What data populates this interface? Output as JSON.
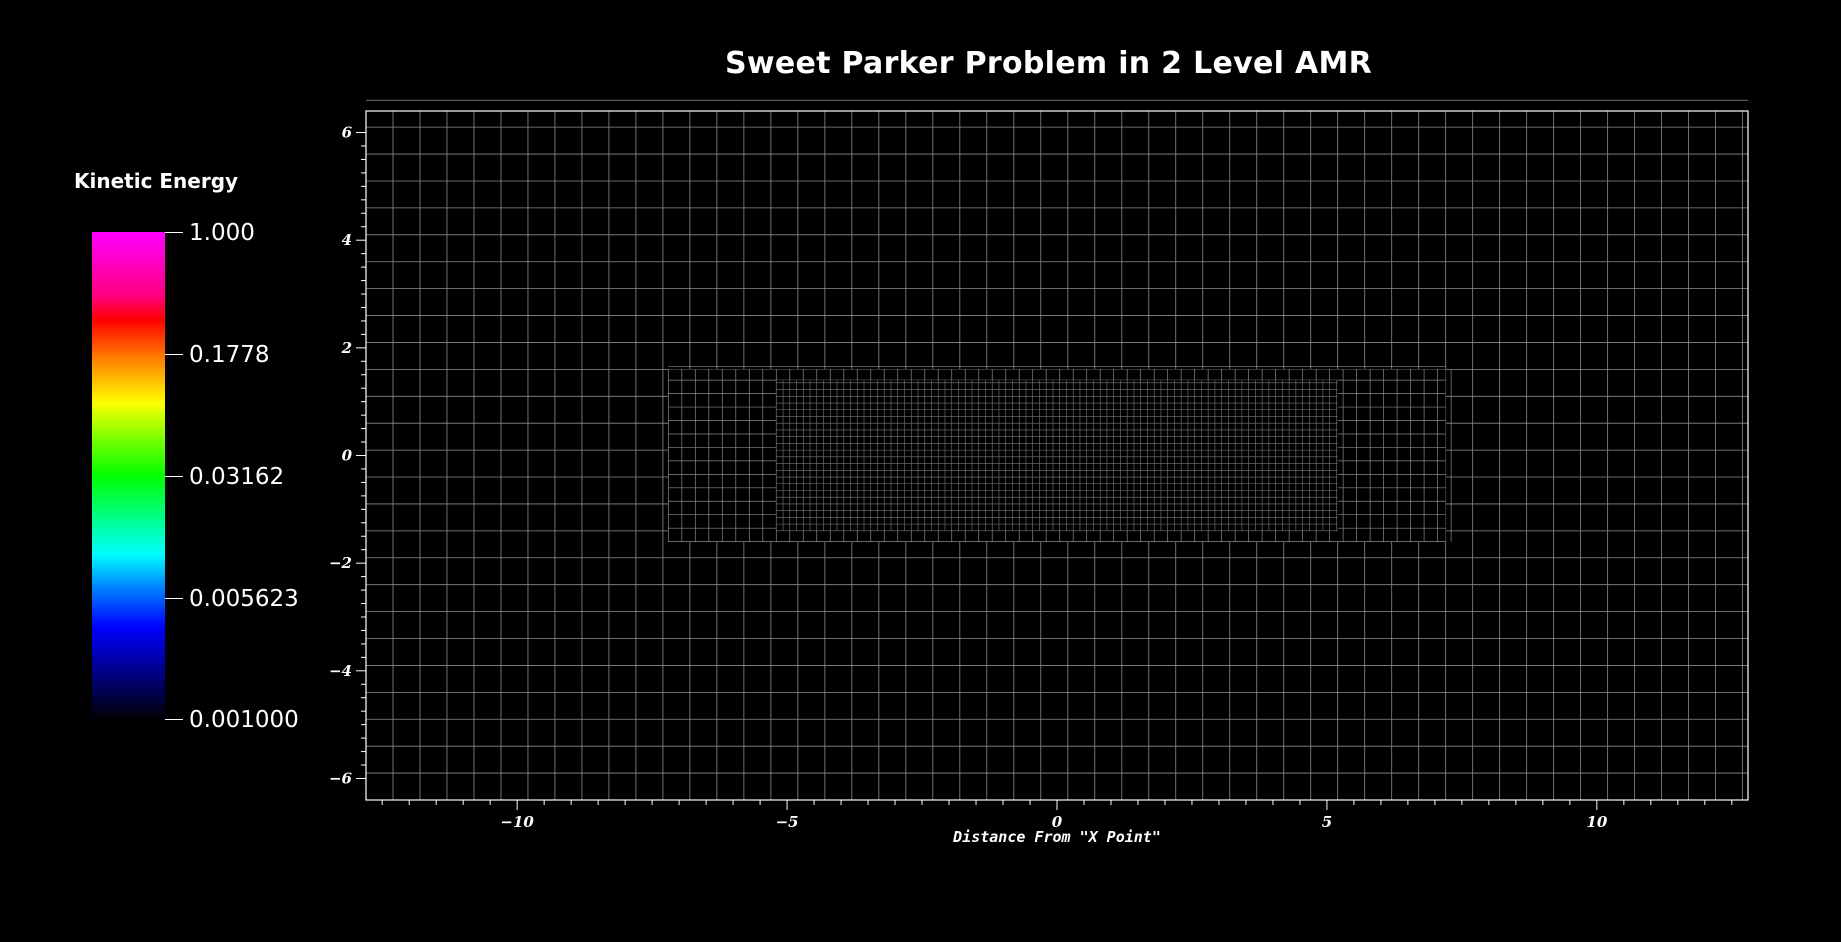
{
  "title": "Sweet Parker Problem in 2 Level AMR",
  "colorbar": {
    "title": "Kinetic Energy",
    "labels": [
      "1.000",
      "0.1778",
      "0.03162",
      "0.005623",
      "0.001000"
    ]
  },
  "axes": {
    "xlabel": "Distance From \"X Point\"",
    "xrange": [
      -12.8,
      12.8
    ],
    "yrange": [
      -6.4,
      6.4
    ],
    "xticks": [
      -10,
      -5,
      0,
      5,
      10
    ],
    "yticks": [
      6,
      4,
      2,
      0,
      -2,
      -4,
      -6
    ]
  },
  "grid": {
    "base_spacing": 0.5,
    "level1_box": {
      "x": [
        -7.2,
        7.2
      ],
      "y": [
        -1.6,
        1.6
      ],
      "spacing": 0.25
    },
    "level2_box": {
      "x": [
        -5.2,
        5.2
      ],
      "y": [
        -1.4,
        1.4
      ],
      "spacing": 0.125
    }
  }
}
